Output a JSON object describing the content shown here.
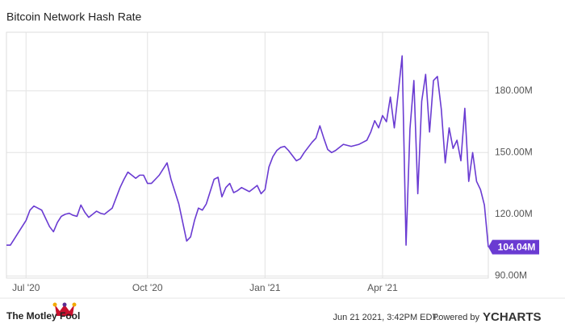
{
  "chart_data": {
    "type": "line",
    "title": "Bitcoin Network Hash Rate",
    "categories": [
      null,
      null,
      null,
      null,
      null,
      "Jul '20",
      null,
      null,
      null,
      null,
      null,
      null,
      null,
      null,
      null,
      null,
      null,
      null,
      null,
      null,
      null,
      null,
      null,
      null,
      null,
      null,
      null,
      null,
      null,
      null,
      null,
      null,
      null,
      null,
      null,
      null,
      "Oct '20",
      null,
      null,
      null,
      null,
      null,
      null,
      null,
      null,
      null,
      null,
      null,
      null,
      null,
      null,
      null,
      null,
      null,
      null,
      null,
      null,
      null,
      null,
      null,
      null,
      null,
      null,
      null,
      null,
      null,
      "Jan '21",
      null,
      null,
      null,
      null,
      null,
      null,
      null,
      null,
      null,
      null,
      null,
      null,
      null,
      null,
      null,
      null,
      null,
      null,
      null,
      null,
      null,
      null,
      null,
      null,
      null,
      null,
      null,
      null,
      null,
      "Apr '21",
      null,
      null,
      null,
      null,
      null,
      null,
      null,
      null,
      null,
      null,
      null,
      null,
      null,
      null,
      null,
      null,
      null,
      null,
      null,
      null,
      null,
      null,
      null,
      null,
      null,
      null,
      null
    ],
    "series": [
      {
        "name": "Bitcoin Network Hash Rate",
        "color": "#6a3bd2",
        "values": [
          105,
          105,
          108,
          111,
          114,
          117,
          122,
          124,
          123,
          122,
          118,
          114,
          111.5,
          116,
          119,
          120,
          120.5,
          119.5,
          119,
          124.5,
          121,
          118.5,
          120,
          121.5,
          120.5,
          120,
          121.5,
          123,
          128,
          133,
          137,
          140.5,
          139,
          137.5,
          139,
          139,
          135,
          135,
          137,
          139,
          142,
          145,
          137,
          131,
          125,
          116,
          107,
          109,
          117,
          123,
          122,
          125,
          131,
          137,
          138,
          128.5,
          133,
          135,
          130.5,
          131.5,
          133,
          132,
          131,
          132.5,
          134,
          130,
          132,
          143,
          148,
          151,
          152.5,
          153,
          151,
          148.5,
          146,
          147,
          150,
          152.5,
          155,
          157,
          163,
          157,
          151.5,
          150,
          151,
          152.5,
          154,
          153.5,
          153,
          153.5,
          154,
          155,
          156,
          160,
          165.5,
          162,
          168,
          165,
          177,
          162,
          179,
          197,
          105,
          161.5,
          185,
          130,
          175,
          188,
          160,
          185,
          187,
          171,
          145,
          162,
          152,
          156,
          146,
          171.5,
          136,
          150,
          136,
          132,
          124.5,
          104.04
        ]
      }
    ],
    "annotations": [
      {
        "value": 104.04,
        "label": "104.04M"
      }
    ],
    "ylim": [
      89,
      208.5
    ],
    "yticks": [
      {
        "value": 90,
        "label": "90.00M"
      },
      {
        "value": 120,
        "label": "120.00M"
      },
      {
        "value": 150,
        "label": "150.00M"
      },
      {
        "value": 180,
        "label": "180.00M"
      }
    ],
    "grid": true,
    "footer": {
      "brand": "The Motley Fool",
      "timestamp": "Jun 21 2021, 3:42PM EDT.",
      "powered": "Powered by",
      "provider": "YCHARTS"
    }
  }
}
